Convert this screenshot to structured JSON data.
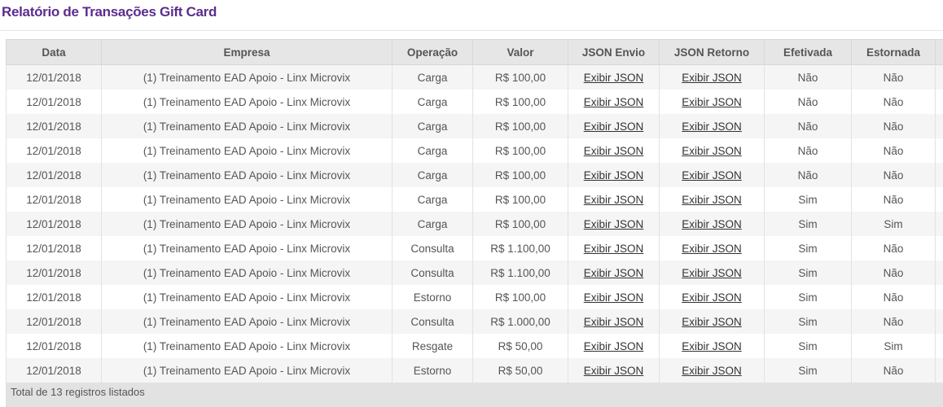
{
  "page": {
    "title": "Relatório de Transações Gift Card",
    "title_color": "#5b2d8e"
  },
  "table": {
    "headers": [
      "Data",
      "Empresa",
      "Operação",
      "Valor",
      "JSON Envio",
      "JSON Retorno",
      "Efetivada",
      "Estornada",
      ""
    ],
    "link_label": "Exibir JSON",
    "rows": [
      [
        "12/01/2018",
        "(1) Treinamento EAD Apoio - Linx Microvix",
        "Carga",
        "R$ 100,00",
        "Não",
        "Não"
      ],
      [
        "12/01/2018",
        "(1) Treinamento EAD Apoio - Linx Microvix",
        "Carga",
        "R$ 100,00",
        "Não",
        "Não"
      ],
      [
        "12/01/2018",
        "(1) Treinamento EAD Apoio - Linx Microvix",
        "Carga",
        "R$ 100,00",
        "Não",
        "Não"
      ],
      [
        "12/01/2018",
        "(1) Treinamento EAD Apoio - Linx Microvix",
        "Carga",
        "R$ 100,00",
        "Não",
        "Não"
      ],
      [
        "12/01/2018",
        "(1) Treinamento EAD Apoio - Linx Microvix",
        "Carga",
        "R$ 100,00",
        "Não",
        "Não"
      ],
      [
        "12/01/2018",
        "(1) Treinamento EAD Apoio - Linx Microvix",
        "Carga",
        "R$ 100,00",
        "Sim",
        "Não"
      ],
      [
        "12/01/2018",
        "(1) Treinamento EAD Apoio - Linx Microvix",
        "Carga",
        "R$ 100,00",
        "Sim",
        "Sim"
      ],
      [
        "12/01/2018",
        "(1) Treinamento EAD Apoio - Linx Microvix",
        "Consulta",
        "R$ 1.100,00",
        "Sim",
        "Não"
      ],
      [
        "12/01/2018",
        "(1) Treinamento EAD Apoio - Linx Microvix",
        "Consulta",
        "R$ 1.100,00",
        "Sim",
        "Não"
      ],
      [
        "12/01/2018",
        "(1) Treinamento EAD Apoio - Linx Microvix",
        "Estorno",
        "R$ 100,00",
        "Sim",
        "Não"
      ],
      [
        "12/01/2018",
        "(1) Treinamento EAD Apoio - Linx Microvix",
        "Consulta",
        "R$ 1.000,00",
        "Sim",
        "Não"
      ],
      [
        "12/01/2018",
        "(1) Treinamento EAD Apoio - Linx Microvix",
        "Resgate",
        "R$ 50,00",
        "Sim",
        "Sim"
      ],
      [
        "12/01/2018",
        "(1) Treinamento EAD Apoio - Linx Microvix",
        "Estorno",
        "R$ 50,00",
        "Sim",
        "Não"
      ]
    ],
    "footer": "Total de 13 registros listados"
  }
}
